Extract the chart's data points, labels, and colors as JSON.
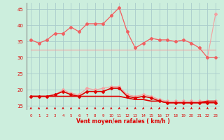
{
  "x": [
    0,
    1,
    2,
    3,
    4,
    5,
    6,
    7,
    8,
    9,
    10,
    11,
    12,
    13,
    14,
    15,
    16,
    17,
    18,
    19,
    20,
    21,
    22,
    23
  ],
  "rafales_light1": [
    35.5,
    34.5,
    35.5,
    37.5,
    37.5,
    39.5,
    38.0,
    40.5,
    40.5,
    40.5,
    43.0,
    45.5,
    38.0,
    33.0,
    34.5,
    36.0,
    35.5,
    35.5,
    35.0,
    35.5,
    34.5,
    33.0,
    30.0,
    43.5
  ],
  "rafales_light2": [
    35.5,
    34.5,
    35.5,
    37.5,
    37.5,
    39.5,
    38.0,
    40.5,
    40.5,
    40.5,
    43.0,
    45.5,
    38.0,
    33.0,
    34.5,
    36.0,
    35.5,
    35.5,
    35.0,
    35.5,
    34.5,
    33.0,
    30.0,
    30.0
  ],
  "rafales_flat": [
    32.5,
    32.5,
    32.5,
    32.5,
    32.5,
    32.5,
    32.5,
    32.5,
    32.5,
    32.5,
    32.5,
    32.5,
    32.5,
    32.5,
    32.5,
    32.5,
    32.5,
    32.5,
    32.5,
    32.5,
    32.5,
    32.5,
    32.5,
    32.5
  ],
  "moyen_light": [
    18.0,
    18.0,
    18.0,
    18.5,
    20.0,
    19.0,
    18.5,
    20.5,
    20.0,
    20.5,
    21.0,
    21.0,
    18.5,
    18.0,
    18.5,
    18.0,
    17.0,
    16.5,
    16.5,
    16.5,
    16.5,
    16.5,
    16.5,
    16.5
  ],
  "moyen_dark": [
    18.0,
    18.0,
    18.0,
    18.5,
    19.5,
    18.5,
    18.0,
    19.5,
    19.5,
    19.5,
    20.5,
    20.5,
    18.0,
    17.5,
    18.0,
    17.5,
    16.5,
    16.0,
    16.0,
    16.0,
    16.0,
    16.0,
    16.0,
    16.0
  ],
  "moyen_flat1": [
    18.0,
    18.0,
    18.0,
    18.0,
    18.0,
    18.0,
    18.0,
    18.0,
    18.0,
    18.0,
    18.0,
    18.0,
    17.5,
    17.0,
    17.0,
    16.5,
    16.5,
    16.0,
    16.0,
    16.0,
    16.0,
    16.0,
    16.5,
    16.5
  ],
  "moyen_flat2": [
    18.0,
    18.0,
    18.0,
    18.0,
    18.0,
    18.0,
    18.0,
    18.0,
    18.0,
    18.0,
    18.0,
    18.0,
    17.5,
    17.0,
    17.0,
    16.5,
    16.5,
    16.0,
    16.0,
    16.0,
    16.0,
    16.0,
    16.5,
    16.5
  ],
  "color_light": "#f4a0a0",
  "color_dark": "#dd0000",
  "color_medium": "#ee6060",
  "bg_color": "#cceedd",
  "grid_color": "#aacccc",
  "xlabel": "Vent moyen/en rafales ( km/h )",
  "ylim": [
    14,
    47
  ],
  "xlim": [
    -0.5,
    23.5
  ],
  "yticks": [
    15,
    20,
    25,
    30,
    35,
    40,
    45
  ],
  "xticks": [
    0,
    1,
    2,
    3,
    4,
    5,
    6,
    7,
    8,
    9,
    10,
    11,
    12,
    13,
    14,
    15,
    16,
    17,
    18,
    19,
    20,
    21,
    22,
    23
  ]
}
